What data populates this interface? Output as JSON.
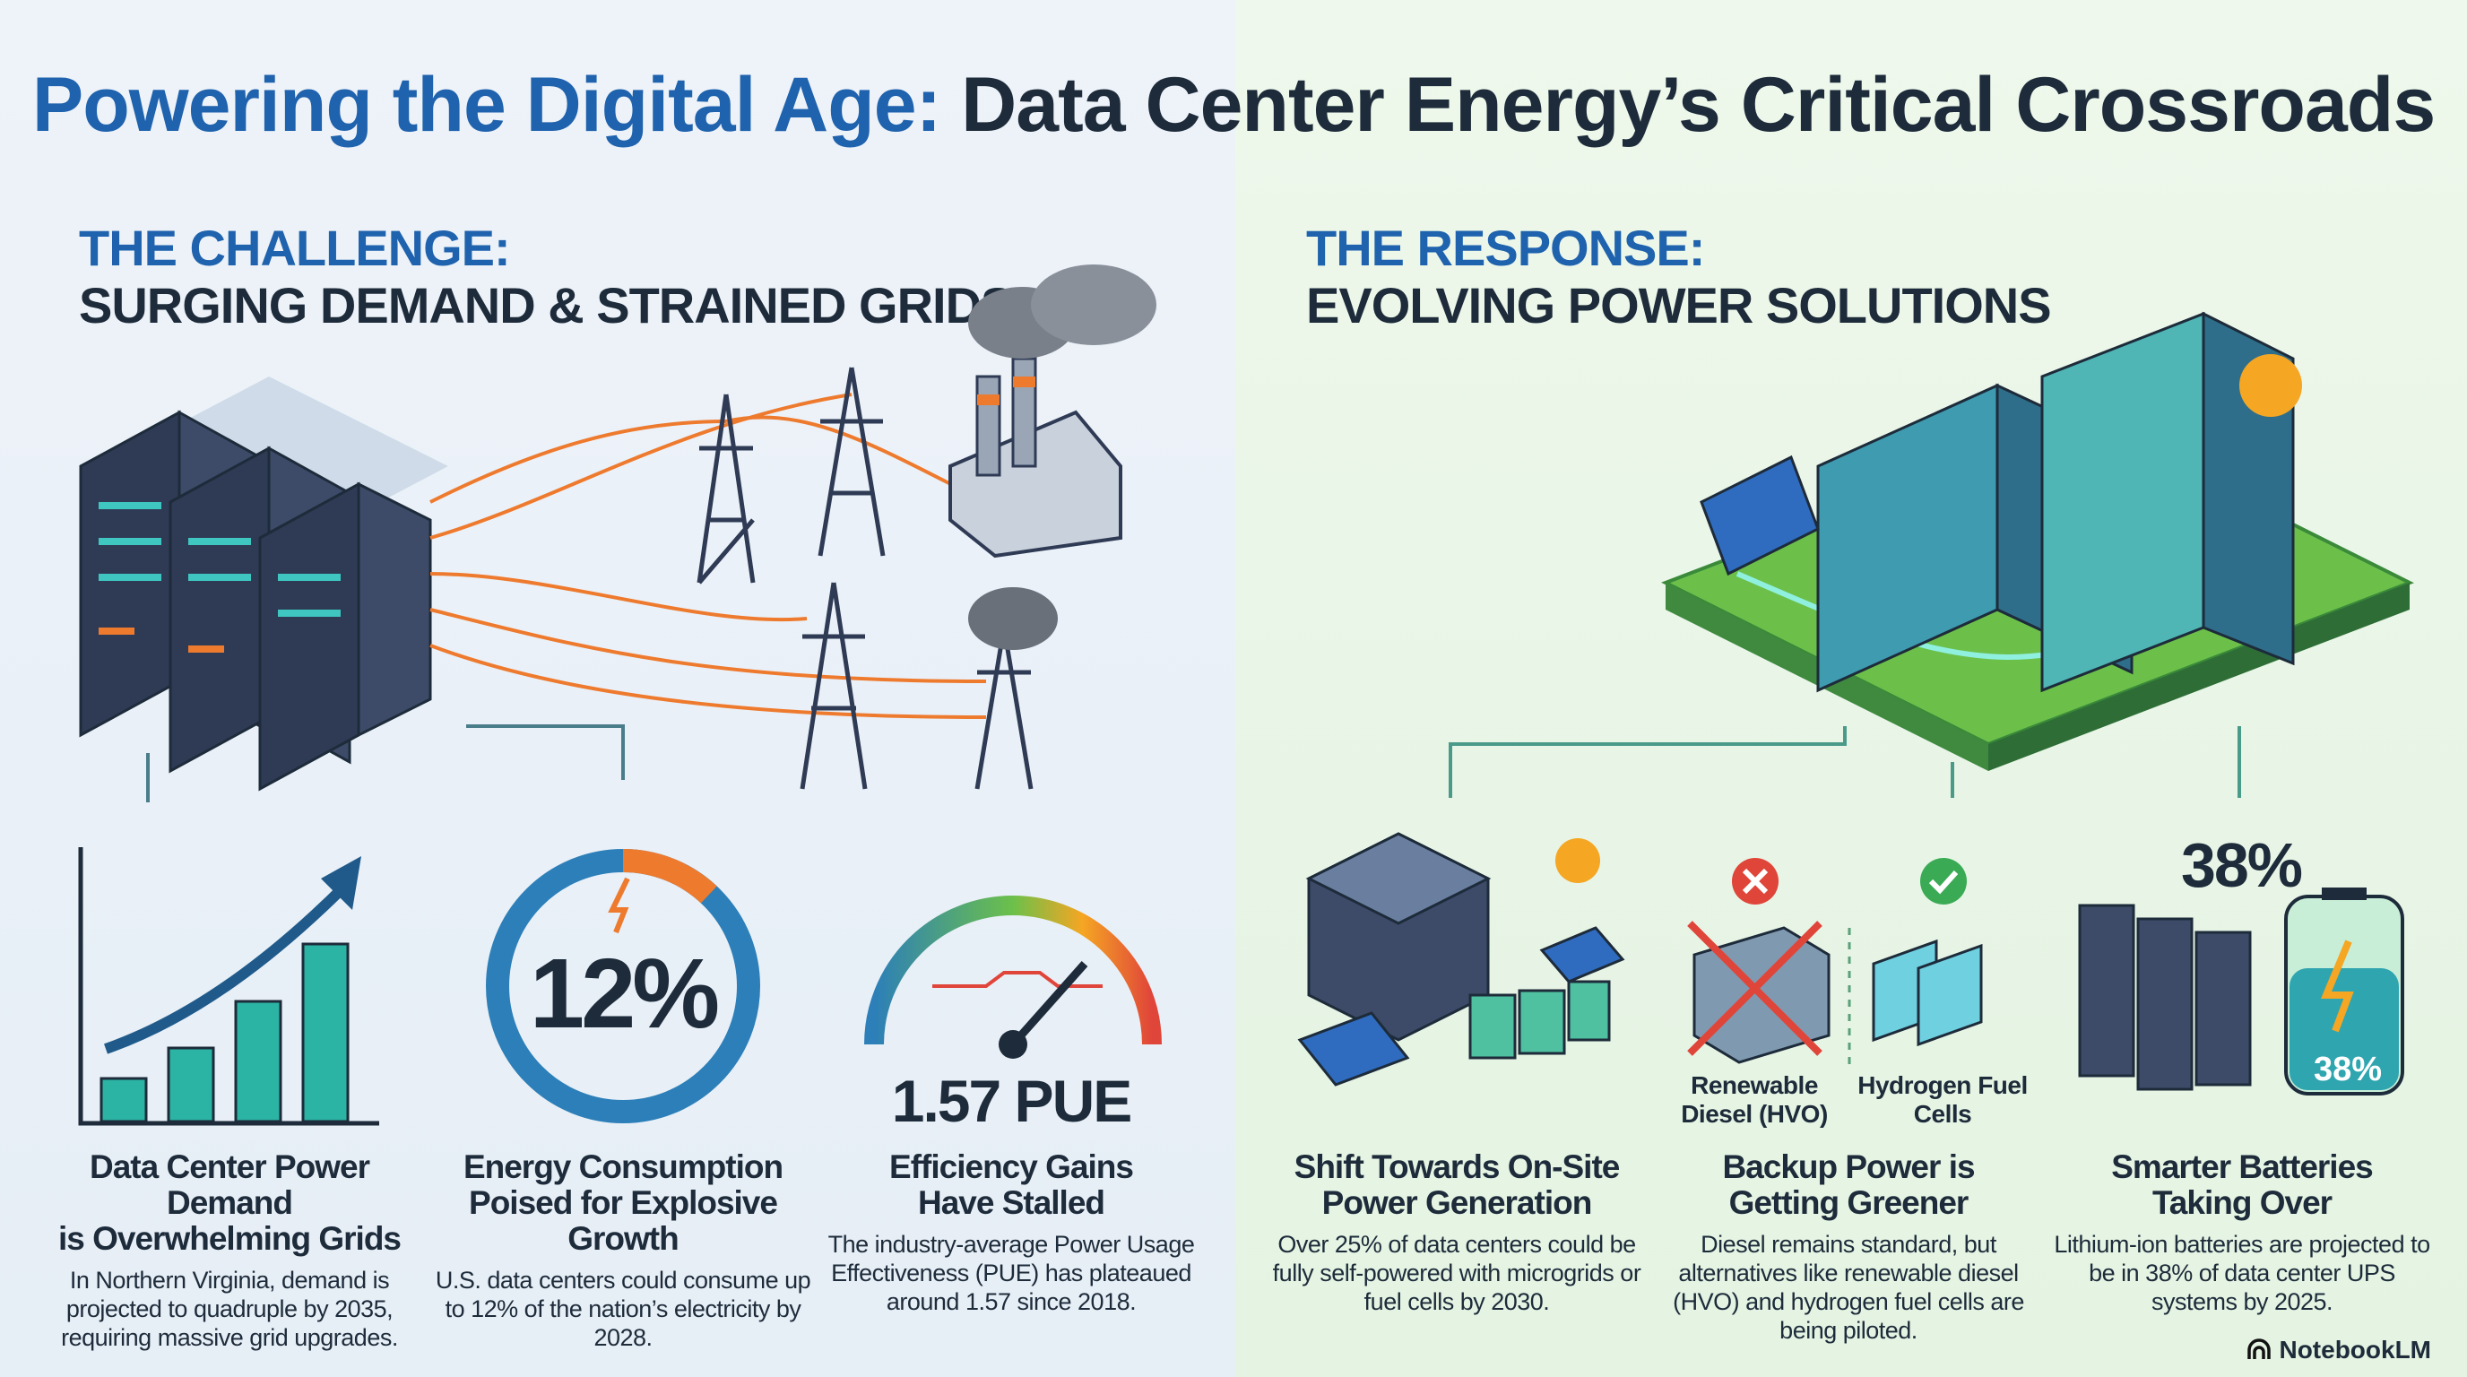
{
  "title": {
    "highlight": "Powering the Digital Age:",
    "rest": " Data Center Energy’s Critical Crossroads"
  },
  "challenge": {
    "label": "THE CHALLENGE:",
    "subtitle": "SURGING DEMAND & STRAINED GRIDS",
    "items": [
      {
        "heading_1": "Data Center Power Demand",
        "heading_2": "is Overwhelming Grids",
        "body": "In Northern Virginia, demand is projected to quadruple by 2035, requiring massive grid upgrades.",
        "icon": "rising-bar-chart-icon"
      },
      {
        "heading_1": "Energy Consumption",
        "heading_2": "Poised for Explosive Growth",
        "body": "U.S. data centers could consume up to 12% of the nation’s electricity by 2028.",
        "stat": "12%",
        "fill_percent": 12,
        "icon": "donut-gauge-icon"
      },
      {
        "heading_1": "Efficiency Gains",
        "heading_2": "Have Stalled",
        "body": "The industry-average Power Usage Effectiveness (PUE) has plateaued around 1.57 since 2018.",
        "stat": "1.57 PUE",
        "icon": "speedometer-icon"
      }
    ]
  },
  "response": {
    "label": "THE RESPONSE:",
    "subtitle": "EVOLVING POWER SOLUTIONS",
    "items": [
      {
        "heading_1": "Shift Towards On-Site",
        "heading_2": "Power Generation",
        "body": "Over 25% of data centers could be fully self-powered with microgrids or fuel cells by 2030.",
        "icon": "microgrid-icon"
      },
      {
        "heading_1": "Backup Power is",
        "heading_2": "Getting Greener",
        "body": "Diesel remains standard, but alternatives like renewable diesel (HVO) and hydrogen fuel cells are being piloted.",
        "icon": "generator-icon",
        "option_a": "Renewable Diesel (HVO)",
        "option_b": "Hydrogen Fuel Cells"
      },
      {
        "heading_1": "Smarter Batteries",
        "heading_2": "Taking Over",
        "body": "Lithium-ion batteries are projected to be in 38% of data center UPS systems by 2025.",
        "stat": "38%",
        "battery_label": "38%",
        "icon": "battery-icon"
      }
    ]
  },
  "footer": {
    "brand": "NotebookLM"
  },
  "colors": {
    "blue": "#1f62ad",
    "dark": "#1d2b3a",
    "teal": "#2bb3a3",
    "orange": "#ee7a2e",
    "green": "#6cc04a",
    "red": "#e0453a"
  }
}
